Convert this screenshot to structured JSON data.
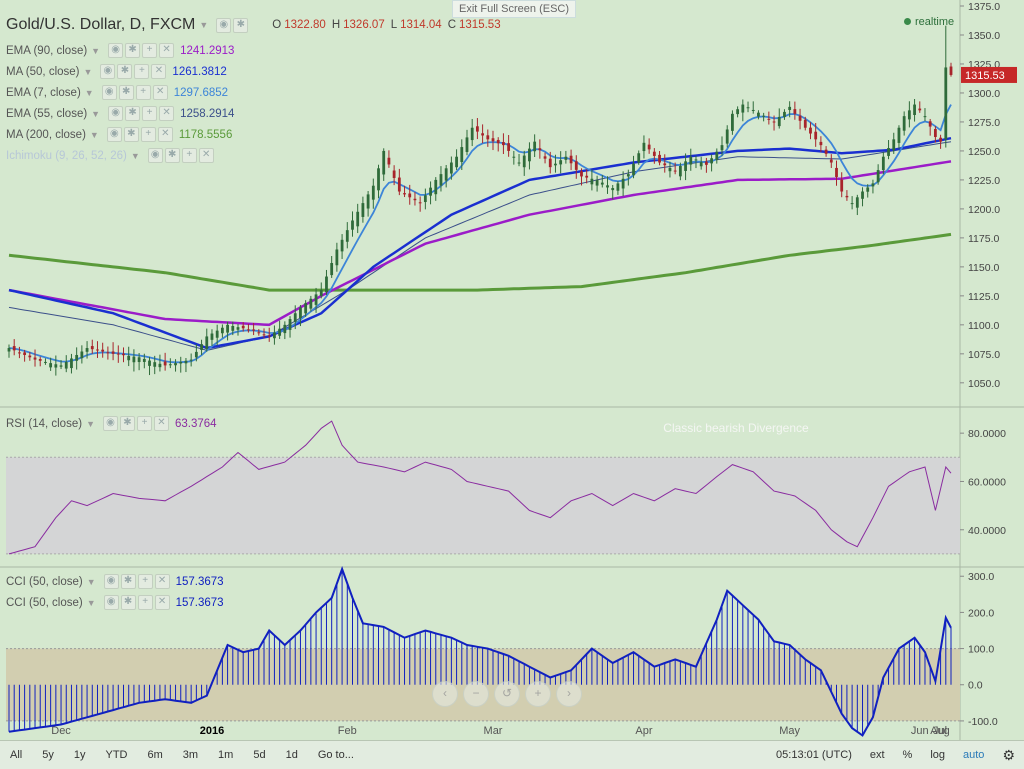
{
  "header": {
    "title": "Gold/U.S. Dollar, D, FXCM",
    "ohlc": [
      {
        "k": "O",
        "v": "1322.80"
      },
      {
        "k": "H",
        "v": "1326.07"
      },
      {
        "k": "L",
        "v": "1314.04"
      },
      {
        "k": "C",
        "v": "1315.53"
      }
    ],
    "exit_fullscreen": "Exit Full Screen (ESC)",
    "realtime": "realtime",
    "last_price": "1315.53"
  },
  "indicators": [
    {
      "label": "EMA (90, close)",
      "value": "1241.2913",
      "color": "#9b1cc8"
    },
    {
      "label": "MA (50, close)",
      "value": "1261.3812",
      "color": "#1a2fd0"
    },
    {
      "label": "EMA (7, close)",
      "value": "1297.6852",
      "color": "#3d85d8"
    },
    {
      "label": "EMA (55, close)",
      "value": "1258.2914",
      "color": "#3b4f8a"
    },
    {
      "label": "MA (200, close)",
      "value": "1178.5556",
      "color": "#5a9a3a"
    },
    {
      "label": "Ichimoku (9, 26, 52, 26)",
      "value": "",
      "color": "#b7c7d7"
    }
  ],
  "rsi": {
    "label": "RSI (14, close)",
    "value": "63.3764",
    "annotation": "Classic bearish Divergence",
    "color": "#8a2ca0"
  },
  "cci": [
    {
      "label": "CCI (50, close)",
      "value": "157.3673",
      "color": "#1020c0"
    },
    {
      "label": "CCI (50, close)",
      "value": "157.3673",
      "color": "#1020c0"
    }
  ],
  "timeframes": [
    "All",
    "5y",
    "1y",
    "YTD",
    "6m",
    "3m",
    "1m",
    "5d",
    "1d",
    "Go to..."
  ],
  "status": {
    "clock": "05:13:01 (UTC)",
    "ext": "ext",
    "percent": "%",
    "log": "log",
    "auto": "auto"
  },
  "colors": {
    "up": "#2f6b3a",
    "down": "#a8242b",
    "bg": "#d5e8cf",
    "band": "#d4d5d6",
    "cci_band": "#d2ceb0"
  },
  "chart_data": [
    {
      "type": "candlestick",
      "pane": "price",
      "title": "Gold/U.S. Dollar, D, FXCM",
      "ylim": [
        1030,
        1375
      ],
      "y_ticks": [
        1050,
        1075,
        1100,
        1125,
        1150,
        1175,
        1200,
        1225,
        1250,
        1275,
        1300,
        1325,
        1350,
        1375
      ],
      "x_labels": [
        "Dec",
        "2016",
        "Feb",
        "Mar",
        "Apr",
        "May",
        "Jun",
        "Jul",
        "Aug"
      ],
      "close_keypoints": [
        [
          0,
          1080
        ],
        [
          5,
          1070
        ],
        [
          10,
          1065
        ],
        [
          15,
          1080
        ],
        [
          20,
          1075
        ],
        [
          25,
          1072
        ],
        [
          30,
          1065
        ],
        [
          35,
          1070
        ],
        [
          38,
          1090
        ],
        [
          42,
          1100
        ],
        [
          47,
          1095
        ],
        [
          50,
          1090
        ],
        [
          53,
          1100
        ],
        [
          56,
          1115
        ],
        [
          60,
          1130
        ],
        [
          63,
          1165
        ],
        [
          66,
          1190
        ],
        [
          70,
          1220
        ],
        [
          72,
          1250
        ],
        [
          75,
          1215
        ],
        [
          79,
          1205
        ],
        [
          82,
          1225
        ],
        [
          86,
          1245
        ],
        [
          89,
          1270
        ],
        [
          92,
          1260
        ],
        [
          95,
          1255
        ],
        [
          98,
          1240
        ],
        [
          101,
          1258
        ],
        [
          104,
          1236
        ],
        [
          107,
          1245
        ],
        [
          110,
          1228
        ],
        [
          113,
          1225
        ],
        [
          116,
          1218
        ],
        [
          119,
          1230
        ],
        [
          122,
          1257
        ],
        [
          125,
          1240
        ],
        [
          128,
          1233
        ],
        [
          131,
          1245
        ],
        [
          134,
          1238
        ],
        [
          137,
          1255
        ],
        [
          139,
          1282
        ],
        [
          141,
          1290
        ],
        [
          144,
          1283
        ],
        [
          147,
          1275
        ],
        [
          150,
          1288
        ],
        [
          153,
          1270
        ],
        [
          156,
          1255
        ],
        [
          158,
          1240
        ],
        [
          160,
          1215
        ],
        [
          162,
          1205
        ],
        [
          164,
          1215
        ],
        [
          166,
          1222
        ],
        [
          168,
          1245
        ],
        [
          170,
          1260
        ],
        [
          172,
          1280
        ],
        [
          174,
          1290
        ],
        [
          176,
          1280
        ],
        [
          178,
          1262
        ],
        [
          179,
          1258
        ],
        [
          180,
          1322
        ],
        [
          181,
          1315.53
        ]
      ],
      "ema90_keypoints": [
        [
          0,
          1130
        ],
        [
          30,
          1105
        ],
        [
          50,
          1100
        ],
        [
          60,
          1125
        ],
        [
          80,
          1170
        ],
        [
          100,
          1195
        ],
        [
          120,
          1212
        ],
        [
          140,
          1225
        ],
        [
          160,
          1226
        ],
        [
          181,
          1241
        ]
      ],
      "ma50_keypoints": [
        [
          0,
          1130
        ],
        [
          20,
          1110
        ],
        [
          38,
          1080
        ],
        [
          50,
          1090
        ],
        [
          60,
          1110
        ],
        [
          70,
          1150
        ],
        [
          85,
          1195
        ],
        [
          100,
          1225
        ],
        [
          120,
          1240
        ],
        [
          140,
          1250
        ],
        [
          150,
          1252
        ],
        [
          160,
          1248
        ],
        [
          170,
          1251
        ],
        [
          181,
          1261
        ]
      ],
      "ema55_keypoints": [
        [
          0,
          1115
        ],
        [
          20,
          1100
        ],
        [
          38,
          1078
        ],
        [
          50,
          1090
        ],
        [
          65,
          1130
        ],
        [
          80,
          1175
        ],
        [
          100,
          1212
        ],
        [
          120,
          1232
        ],
        [
          140,
          1245
        ],
        [
          160,
          1243
        ],
        [
          181,
          1258
        ]
      ],
      "ma200_keypoints": [
        [
          0,
          1160
        ],
        [
          30,
          1145
        ],
        [
          50,
          1130
        ],
        [
          70,
          1130
        ],
        [
          90,
          1130
        ],
        [
          110,
          1133
        ],
        [
          130,
          1145
        ],
        [
          150,
          1160
        ],
        [
          165,
          1168
        ],
        [
          181,
          1178
        ]
      ],
      "ema7_lag": 1
    },
    {
      "type": "line",
      "pane": "rsi",
      "title": "RSI (14, close)",
      "ylim": [
        25,
        90
      ],
      "y_ticks": [
        40,
        60,
        80
      ],
      "band": [
        30,
        70
      ],
      "annotation": "Classic bearish Divergence",
      "keypoints": [
        [
          0,
          30
        ],
        [
          5,
          33
        ],
        [
          9,
          45
        ],
        [
          12,
          52
        ],
        [
          15,
          50
        ],
        [
          20,
          55
        ],
        [
          25,
          53
        ],
        [
          30,
          52
        ],
        [
          35,
          58
        ],
        [
          38,
          62
        ],
        [
          41,
          66
        ],
        [
          44,
          72
        ],
        [
          48,
          65
        ],
        [
          53,
          68
        ],
        [
          57,
          75
        ],
        [
          60,
          82
        ],
        [
          62,
          85
        ],
        [
          64,
          75
        ],
        [
          67,
          68
        ],
        [
          72,
          66
        ],
        [
          76,
          64
        ],
        [
          80,
          68
        ],
        [
          85,
          65
        ],
        [
          88,
          60
        ],
        [
          92,
          58
        ],
        [
          96,
          56
        ],
        [
          100,
          48
        ],
        [
          104,
          45
        ],
        [
          108,
          52
        ],
        [
          112,
          55
        ],
        [
          116,
          50
        ],
        [
          120,
          55
        ],
        [
          124,
          52
        ],
        [
          128,
          57
        ],
        [
          132,
          55
        ],
        [
          136,
          62
        ],
        [
          139,
          67
        ],
        [
          143,
          64
        ],
        [
          147,
          56
        ],
        [
          151,
          54
        ],
        [
          155,
          48
        ],
        [
          158,
          40
        ],
        [
          161,
          35
        ],
        [
          163,
          33
        ],
        [
          166,
          45
        ],
        [
          169,
          58
        ],
        [
          173,
          64
        ],
        [
          176,
          66
        ],
        [
          178,
          48
        ],
        [
          180,
          66
        ],
        [
          181,
          63.4
        ]
      ]
    },
    {
      "type": "bar",
      "pane": "cci",
      "title": "CCI (50, close)",
      "ylim": [
        -150,
        320
      ],
      "y_ticks": [
        -100,
        0,
        100,
        200,
        300
      ],
      "band": [
        -100,
        100
      ],
      "keypoints": [
        [
          0,
          -130
        ],
        [
          5,
          -120
        ],
        [
          10,
          -110
        ],
        [
          15,
          -90
        ],
        [
          20,
          -70
        ],
        [
          25,
          -50
        ],
        [
          30,
          -40
        ],
        [
          35,
          -50
        ],
        [
          38,
          -30
        ],
        [
          42,
          110
        ],
        [
          45,
          90
        ],
        [
          48,
          100
        ],
        [
          50,
          150
        ],
        [
          53,
          110
        ],
        [
          56,
          150
        ],
        [
          59,
          200
        ],
        [
          62,
          240
        ],
        [
          64,
          320
        ],
        [
          66,
          240
        ],
        [
          68,
          170
        ],
        [
          72,
          160
        ],
        [
          76,
          130
        ],
        [
          80,
          150
        ],
        [
          85,
          130
        ],
        [
          88,
          110
        ],
        [
          92,
          100
        ],
        [
          96,
          80
        ],
        [
          100,
          50
        ],
        [
          104,
          20
        ],
        [
          108,
          40
        ],
        [
          112,
          100
        ],
        [
          116,
          60
        ],
        [
          120,
          90
        ],
        [
          124,
          50
        ],
        [
          128,
          70
        ],
        [
          132,
          50
        ],
        [
          136,
          180
        ],
        [
          138,
          260
        ],
        [
          141,
          220
        ],
        [
          144,
          180
        ],
        [
          147,
          120
        ],
        [
          150,
          110
        ],
        [
          153,
          70
        ],
        [
          156,
          40
        ],
        [
          158,
          -20
        ],
        [
          160,
          -80
        ],
        [
          162,
          -120
        ],
        [
          164,
          -140
        ],
        [
          166,
          -90
        ],
        [
          168,
          20
        ],
        [
          171,
          100
        ],
        [
          174,
          130
        ],
        [
          176,
          90
        ],
        [
          178,
          10
        ],
        [
          180,
          185
        ],
        [
          181,
          157.4
        ]
      ]
    }
  ]
}
